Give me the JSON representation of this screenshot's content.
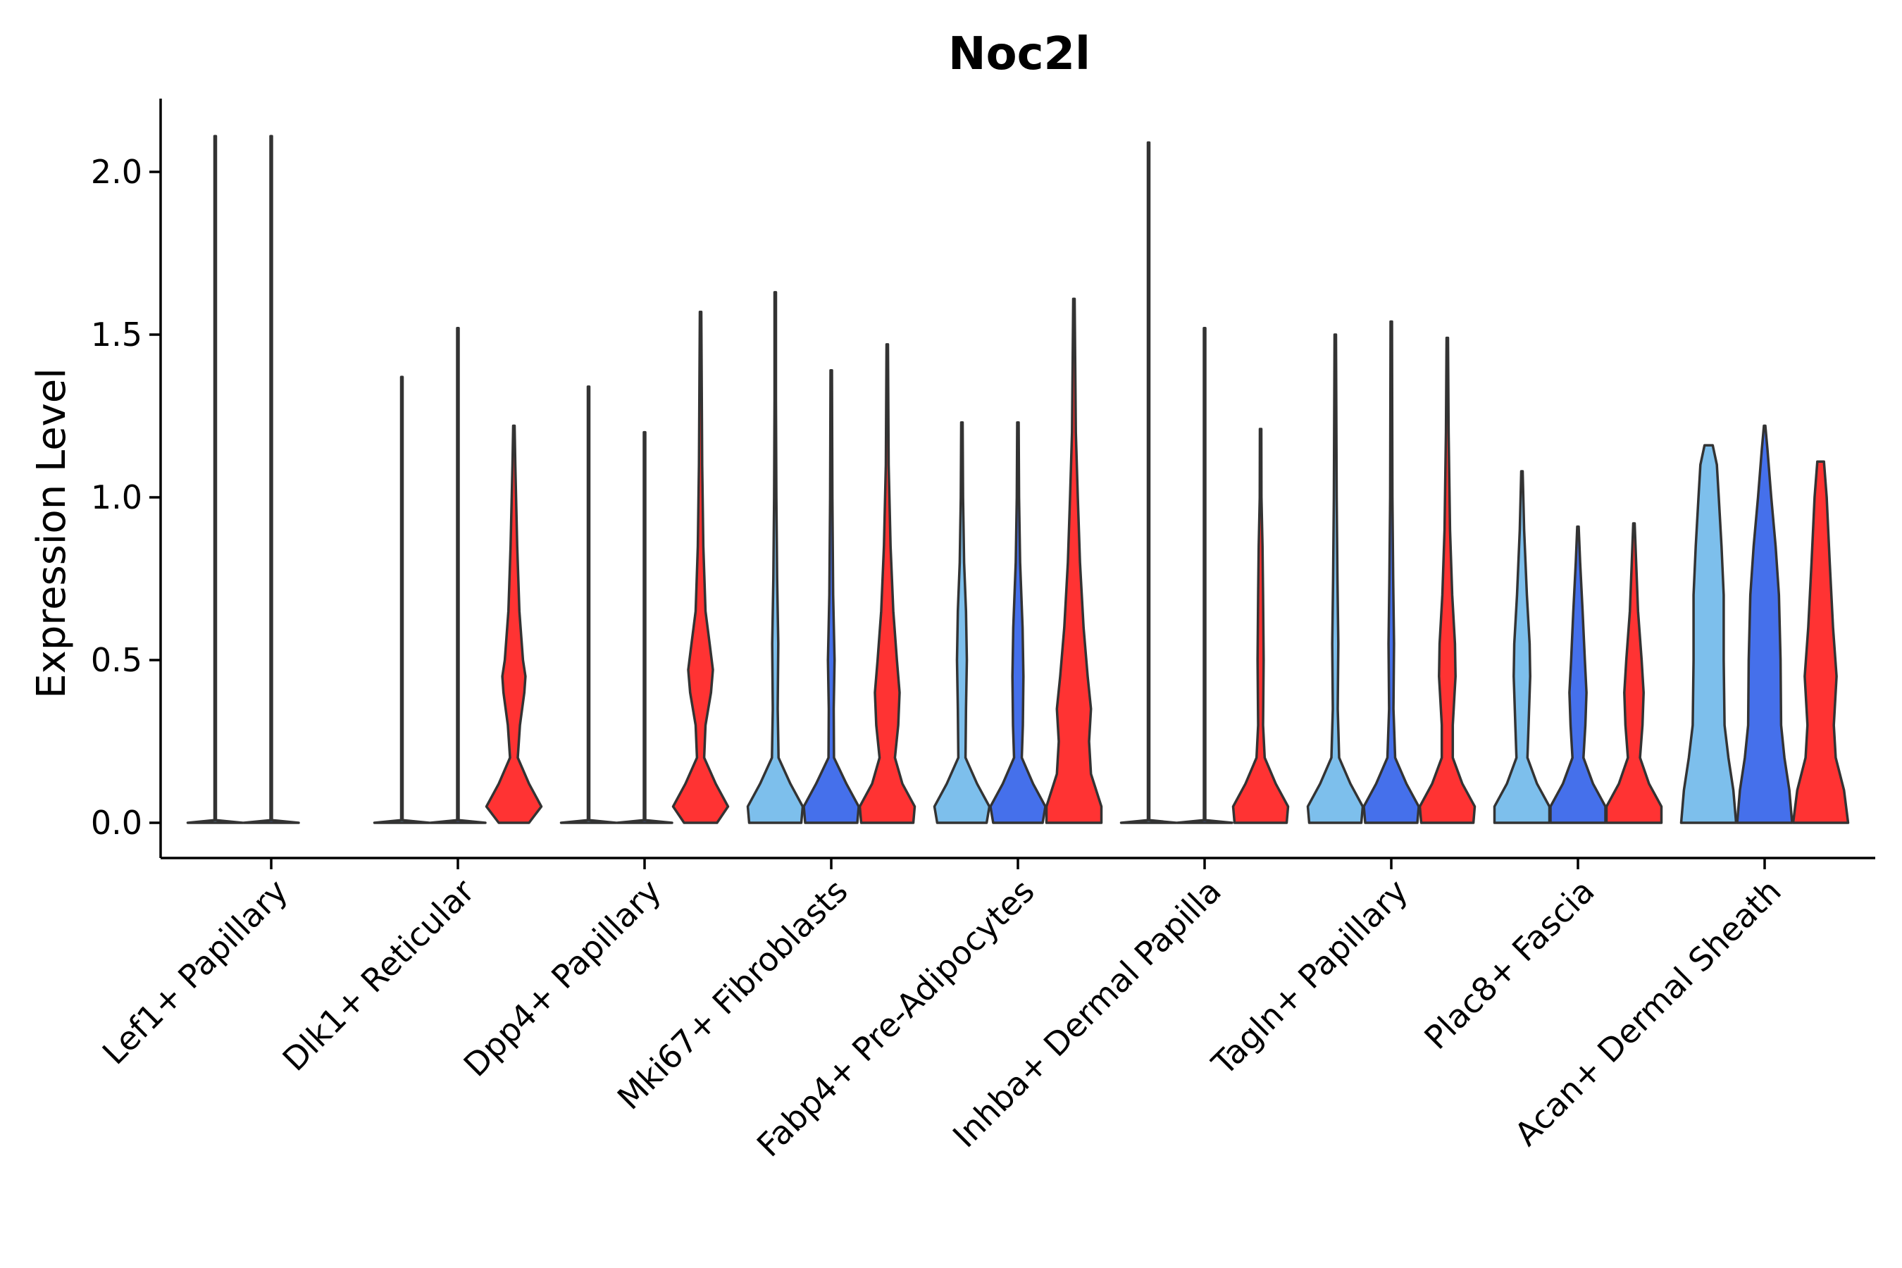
{
  "chart_data": {
    "type": "violin",
    "title": "Noc2l",
    "xlabel": "",
    "ylabel": "Expression Level",
    "ylim": [
      -0.11,
      2.23
    ],
    "yticks": [
      0.0,
      0.5,
      1.0,
      1.5,
      2.0
    ],
    "ytick_labels": [
      "0.0",
      "0.5",
      "1.0",
      "1.5",
      "2.0"
    ],
    "grid": false,
    "legend": "none",
    "series": [
      {
        "name": "group1",
        "color": "#7dbfec"
      },
      {
        "name": "group2",
        "color": "#4570eb"
      },
      {
        "name": "group3",
        "color": "#ff3333"
      }
    ],
    "categories": [
      "Lef1+ Papillary",
      "Dlk1+ Reticular",
      "Dpp4+ Papillary",
      "Mki67+ Fibroblasts",
      "Fabp4+ Pre-Adipocytes",
      "Inhba+ Dermal Papilla",
      "Tagln+ Papillary",
      "Plac8+ Fascia",
      "Acan+ Dermal Sheath"
    ],
    "violins": [
      [
        {
          "series": 0,
          "max": 2.11,
          "profile": [
            [
              0,
              1.0
            ],
            [
              0.008,
              0.0
            ]
          ]
        },
        {
          "series": 1,
          "max": 2.11,
          "profile": [
            [
              0,
              1.0
            ],
            [
              0.008,
              0.0
            ]
          ]
        },
        null
      ],
      [
        {
          "series": 0,
          "max": 1.37,
          "profile": [
            [
              0,
              1.0
            ],
            [
              0.008,
              0.0
            ]
          ]
        },
        {
          "series": 1,
          "max": 1.52,
          "profile": [
            [
              0,
              1.0
            ],
            [
              0.008,
              0.0
            ]
          ]
        },
        {
          "series": 2,
          "max": 1.22,
          "profile": [
            [
              0,
              0.55
            ],
            [
              0.05,
              1.0
            ],
            [
              0.12,
              0.55
            ],
            [
              0.2,
              0.14
            ],
            [
              0.3,
              0.22
            ],
            [
              0.4,
              0.38
            ],
            [
              0.45,
              0.42
            ],
            [
              0.5,
              0.33
            ],
            [
              0.65,
              0.2
            ],
            [
              0.85,
              0.12
            ],
            [
              1.1,
              0.05
            ],
            [
              1.22,
              0.0
            ]
          ]
        }
      ],
      [
        {
          "series": 0,
          "max": 1.34,
          "profile": [
            [
              0,
              1.0
            ],
            [
              0.008,
              0.0
            ]
          ]
        },
        {
          "series": 1,
          "max": 1.2,
          "profile": [
            [
              0,
              1.0
            ],
            [
              0.008,
              0.0
            ]
          ]
        },
        {
          "series": 2,
          "max": 1.57,
          "profile": [
            [
              0,
              0.6
            ],
            [
              0.05,
              1.0
            ],
            [
              0.12,
              0.55
            ],
            [
              0.2,
              0.13
            ],
            [
              0.3,
              0.18
            ],
            [
              0.4,
              0.38
            ],
            [
              0.47,
              0.45
            ],
            [
              0.55,
              0.33
            ],
            [
              0.65,
              0.18
            ],
            [
              0.85,
              0.1
            ],
            [
              1.1,
              0.06
            ],
            [
              1.57,
              0.0
            ]
          ]
        }
      ],
      [
        {
          "series": 0,
          "max": 1.63,
          "profile": [
            [
              0,
              0.95
            ],
            [
              0.05,
              1.0
            ],
            [
              0.12,
              0.55
            ],
            [
              0.2,
              0.12
            ],
            [
              0.35,
              0.09
            ],
            [
              0.55,
              0.11
            ],
            [
              0.75,
              0.07
            ],
            [
              1.0,
              0.04
            ],
            [
              1.3,
              0.02
            ],
            [
              1.63,
              0.0
            ]
          ]
        },
        {
          "series": 1,
          "max": 1.39,
          "profile": [
            [
              0,
              0.95
            ],
            [
              0.05,
              1.0
            ],
            [
              0.12,
              0.55
            ],
            [
              0.2,
              0.1
            ],
            [
              0.35,
              0.09
            ],
            [
              0.5,
              0.12
            ],
            [
              0.7,
              0.07
            ],
            [
              1.0,
              0.04
            ],
            [
              1.39,
              0.0
            ]
          ]
        },
        {
          "series": 2,
          "max": 1.47,
          "profile": [
            [
              0,
              0.95
            ],
            [
              0.05,
              1.0
            ],
            [
              0.12,
              0.55
            ],
            [
              0.2,
              0.28
            ],
            [
              0.3,
              0.4
            ],
            [
              0.4,
              0.45
            ],
            [
              0.5,
              0.35
            ],
            [
              0.65,
              0.22
            ],
            [
              0.85,
              0.12
            ],
            [
              1.1,
              0.05
            ],
            [
              1.47,
              0.0
            ]
          ]
        }
      ],
      [
        {
          "series": 0,
          "max": 1.23,
          "profile": [
            [
              0,
              0.9
            ],
            [
              0.05,
              1.0
            ],
            [
              0.12,
              0.55
            ],
            [
              0.2,
              0.13
            ],
            [
              0.35,
              0.15
            ],
            [
              0.5,
              0.18
            ],
            [
              0.65,
              0.15
            ],
            [
              0.8,
              0.08
            ],
            [
              1.0,
              0.04
            ],
            [
              1.23,
              0.0
            ]
          ]
        },
        {
          "series": 1,
          "max": 1.23,
          "profile": [
            [
              0,
              0.9
            ],
            [
              0.05,
              1.0
            ],
            [
              0.12,
              0.55
            ],
            [
              0.2,
              0.14
            ],
            [
              0.3,
              0.18
            ],
            [
              0.45,
              0.2
            ],
            [
              0.6,
              0.17
            ],
            [
              0.8,
              0.08
            ],
            [
              1.0,
              0.04
            ],
            [
              1.23,
              0.0
            ]
          ]
        },
        {
          "series": 2,
          "max": 1.61,
          "profile": [
            [
              0,
              1.0
            ],
            [
              0.05,
              1.0
            ],
            [
              0.15,
              0.62
            ],
            [
              0.25,
              0.55
            ],
            [
              0.35,
              0.62
            ],
            [
              0.45,
              0.5
            ],
            [
              0.6,
              0.35
            ],
            [
              0.8,
              0.22
            ],
            [
              1.0,
              0.14
            ],
            [
              1.2,
              0.07
            ],
            [
              1.61,
              0.0
            ]
          ]
        }
      ],
      [
        {
          "series": 0,
          "max": 2.09,
          "profile": [
            [
              0,
              1.0
            ],
            [
              0.008,
              0.0
            ]
          ]
        },
        {
          "series": 1,
          "max": 1.52,
          "profile": [
            [
              0,
              1.0
            ],
            [
              0.008,
              0.0
            ]
          ]
        },
        {
          "series": 2,
          "max": 1.21,
          "profile": [
            [
              0,
              0.95
            ],
            [
              0.05,
              1.0
            ],
            [
              0.12,
              0.55
            ],
            [
              0.2,
              0.15
            ],
            [
              0.3,
              0.09
            ],
            [
              0.5,
              0.11
            ],
            [
              0.7,
              0.09
            ],
            [
              0.85,
              0.07
            ],
            [
              1.0,
              0.03
            ],
            [
              1.21,
              0.0
            ]
          ]
        }
      ],
      [
        {
          "series": 0,
          "max": 1.5,
          "profile": [
            [
              0,
              0.95
            ],
            [
              0.05,
              1.0
            ],
            [
              0.12,
              0.55
            ],
            [
              0.2,
              0.14
            ],
            [
              0.35,
              0.09
            ],
            [
              0.55,
              0.11
            ],
            [
              0.75,
              0.08
            ],
            [
              1.0,
              0.05
            ],
            [
              1.5,
              0.0
            ]
          ]
        },
        {
          "series": 1,
          "max": 1.54,
          "profile": [
            [
              0,
              0.95
            ],
            [
              0.05,
              1.0
            ],
            [
              0.12,
              0.55
            ],
            [
              0.2,
              0.14
            ],
            [
              0.35,
              0.08
            ],
            [
              0.55,
              0.1
            ],
            [
              0.75,
              0.07
            ],
            [
              1.0,
              0.04
            ],
            [
              1.54,
              0.0
            ]
          ]
        },
        {
          "series": 2,
          "max": 1.49,
          "profile": [
            [
              0,
              0.95
            ],
            [
              0.05,
              1.0
            ],
            [
              0.12,
              0.55
            ],
            [
              0.2,
              0.2
            ],
            [
              0.3,
              0.2
            ],
            [
              0.45,
              0.3
            ],
            [
              0.55,
              0.28
            ],
            [
              0.7,
              0.18
            ],
            [
              0.9,
              0.1
            ],
            [
              1.2,
              0.05
            ],
            [
              1.49,
              0.0
            ]
          ]
        }
      ],
      [
        {
          "series": 0,
          "max": 1.08,
          "profile": [
            [
              0,
              1.0
            ],
            [
              0.05,
              1.0
            ],
            [
              0.12,
              0.55
            ],
            [
              0.2,
              0.2
            ],
            [
              0.3,
              0.24
            ],
            [
              0.45,
              0.3
            ],
            [
              0.55,
              0.28
            ],
            [
              0.7,
              0.18
            ],
            [
              0.9,
              0.08
            ],
            [
              1.08,
              0.0
            ]
          ]
        },
        {
          "series": 1,
          "max": 0.91,
          "profile": [
            [
              0,
              1.0
            ],
            [
              0.05,
              1.0
            ],
            [
              0.12,
              0.55
            ],
            [
              0.2,
              0.2
            ],
            [
              0.3,
              0.27
            ],
            [
              0.4,
              0.31
            ],
            [
              0.5,
              0.25
            ],
            [
              0.65,
              0.17
            ],
            [
              0.8,
              0.08
            ],
            [
              0.91,
              0.0
            ]
          ]
        },
        {
          "series": 2,
          "max": 0.92,
          "profile": [
            [
              0,
              1.0
            ],
            [
              0.05,
              1.0
            ],
            [
              0.12,
              0.55
            ],
            [
              0.2,
              0.22
            ],
            [
              0.3,
              0.31
            ],
            [
              0.4,
              0.35
            ],
            [
              0.5,
              0.28
            ],
            [
              0.65,
              0.15
            ],
            [
              0.8,
              0.08
            ],
            [
              0.92,
              0.0
            ]
          ]
        }
      ],
      [
        {
          "series": 0,
          "max": 1.16,
          "profile": [
            [
              0,
              1.0
            ],
            [
              0.1,
              0.9
            ],
            [
              0.2,
              0.72
            ],
            [
              0.3,
              0.58
            ],
            [
              0.5,
              0.55
            ],
            [
              0.7,
              0.55
            ],
            [
              0.85,
              0.47
            ],
            [
              1.0,
              0.37
            ],
            [
              1.1,
              0.3
            ],
            [
              1.16,
              0.15
            ]
          ]
        },
        {
          "series": 1,
          "max": 1.22,
          "profile": [
            [
              0,
              1.0
            ],
            [
              0.1,
              0.9
            ],
            [
              0.2,
              0.72
            ],
            [
              0.3,
              0.6
            ],
            [
              0.5,
              0.58
            ],
            [
              0.7,
              0.52
            ],
            [
              0.85,
              0.4
            ],
            [
              1.0,
              0.24
            ],
            [
              1.15,
              0.1
            ],
            [
              1.22,
              0.0
            ]
          ]
        },
        {
          "series": 2,
          "max": 1.11,
          "profile": [
            [
              0,
              1.0
            ],
            [
              0.1,
              0.85
            ],
            [
              0.2,
              0.55
            ],
            [
              0.3,
              0.48
            ],
            [
              0.45,
              0.58
            ],
            [
              0.6,
              0.45
            ],
            [
              0.8,
              0.33
            ],
            [
              1.0,
              0.22
            ],
            [
              1.11,
              0.12
            ]
          ]
        }
      ]
    ]
  }
}
